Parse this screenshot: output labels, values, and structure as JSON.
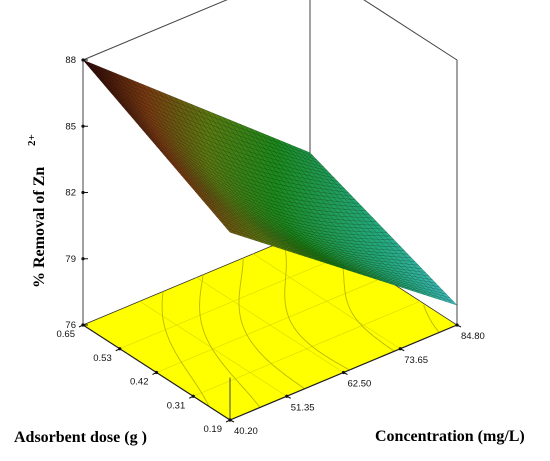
{
  "chart_data": {
    "type": "surface3d",
    "zlabel": "% Removal of Zn",
    "zlabel_superscript": "2+",
    "xlabel": "Adsorbent dose (g )",
    "ylabel": "Concentration (mg/L)",
    "x_ticks": [
      "0.19",
      "0.31",
      "0.42",
      "0.53",
      "0.65"
    ],
    "y_ticks": [
      "40.20",
      "51.35",
      "62.50",
      "73.65",
      "84.80"
    ],
    "z_ticks": [
      "76",
      "79",
      "82",
      "85",
      "88"
    ],
    "xlim": [
      0.19,
      0.65
    ],
    "ylim": [
      40.2,
      84.8
    ],
    "zlim": [
      76,
      88
    ],
    "corner_values": [
      {
        "dose": 0.65,
        "concentration": 40.2,
        "removal": 88.0
      },
      {
        "dose": 0.19,
        "concentration": 40.2,
        "removal": 84.5
      },
      {
        "dose": 0.65,
        "concentration": 84.8,
        "removal": 79.5
      },
      {
        "dose": 0.19,
        "concentration": 84.8,
        "removal": 76.9
      }
    ],
    "floor_color": "#ffff00",
    "colormap": [
      "#2a0505",
      "#7a3a10",
      "#5a7a10",
      "#1a8a1a",
      "#22a878",
      "#4ec8e8"
    ]
  }
}
